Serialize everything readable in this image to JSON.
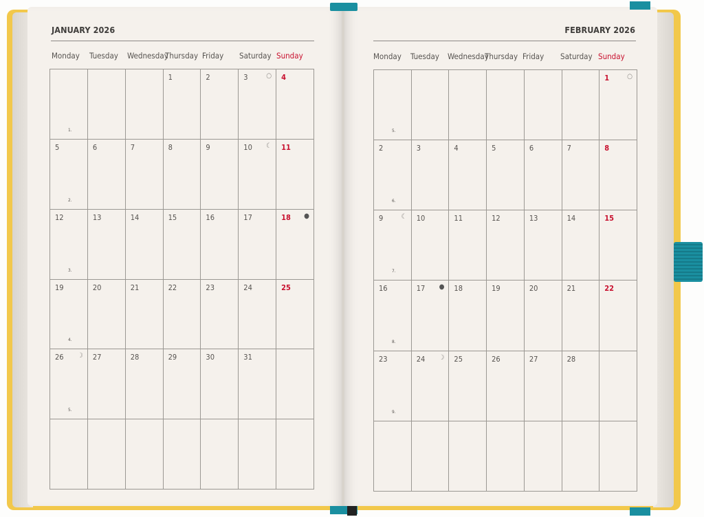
{
  "colors": {
    "sunday": "#c8102e",
    "cover": "#f2c84b",
    "ribbon": "#1a8fa0",
    "paper": "#f5f1ec"
  },
  "months": [
    {
      "title": "JANUARY 2026",
      "weekdays": [
        "Monday",
        "Tuesday",
        "Wednesday",
        "Thursday",
        "Friday",
        "Saturday",
        "Sunday"
      ],
      "weeks": [
        {
          "week": "1.",
          "days": [
            "",
            "",
            "",
            "1",
            "2",
            "3",
            "4"
          ]
        },
        {
          "week": "2.",
          "days": [
            "5",
            "6",
            "7",
            "8",
            "9",
            "10",
            "11"
          ]
        },
        {
          "week": "3.",
          "days": [
            "12",
            "13",
            "14",
            "15",
            "16",
            "17",
            "18"
          ]
        },
        {
          "week": "4.",
          "days": [
            "19",
            "20",
            "21",
            "22",
            "23",
            "24",
            "25"
          ]
        },
        {
          "week": "5.",
          "days": [
            "26",
            "27",
            "28",
            "29",
            "30",
            "31",
            ""
          ]
        },
        {
          "week": "",
          "days": [
            "",
            "",
            "",
            "",
            "",
            "",
            ""
          ]
        }
      ],
      "moons": [
        {
          "day": "3",
          "icon": "full-moon-icon",
          "glyph": "○"
        },
        {
          "day": "10",
          "icon": "last-quarter-moon-icon",
          "glyph": "☾"
        },
        {
          "day": "18",
          "icon": "new-moon-icon",
          "glyph": "●"
        },
        {
          "day": "26",
          "icon": "first-quarter-moon-icon",
          "glyph": "☽"
        }
      ]
    },
    {
      "title": "FEBRUARY 2026",
      "weekdays": [
        "Monday",
        "Tuesday",
        "Wednesday",
        "Thursday",
        "Friday",
        "Saturday",
        "Sunday"
      ],
      "weeks": [
        {
          "week": "5.",
          "days": [
            "",
            "",
            "",
            "",
            "",
            "",
            "1"
          ]
        },
        {
          "week": "6.",
          "days": [
            "2",
            "3",
            "4",
            "5",
            "6",
            "7",
            "8"
          ]
        },
        {
          "week": "7.",
          "days": [
            "9",
            "10",
            "11",
            "12",
            "13",
            "14",
            "15"
          ]
        },
        {
          "week": "8.",
          "days": [
            "16",
            "17",
            "18",
            "19",
            "20",
            "21",
            "22"
          ]
        },
        {
          "week": "9.",
          "days": [
            "23",
            "24",
            "25",
            "26",
            "27",
            "28",
            ""
          ]
        },
        {
          "week": "",
          "days": [
            "",
            "",
            "",
            "",
            "",
            "",
            ""
          ]
        }
      ],
      "moons": [
        {
          "day": "1",
          "icon": "full-moon-icon",
          "glyph": "○"
        },
        {
          "day": "9",
          "icon": "last-quarter-moon-icon",
          "glyph": "☾"
        },
        {
          "day": "17",
          "icon": "new-moon-icon",
          "glyph": "●"
        },
        {
          "day": "24",
          "icon": "first-quarter-moon-icon",
          "glyph": "☽"
        }
      ]
    }
  ]
}
